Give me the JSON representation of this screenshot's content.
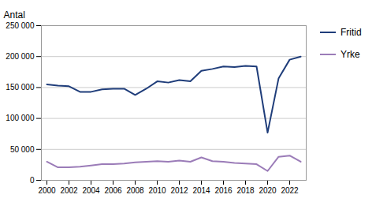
{
  "chart_data": {
    "type": "line",
    "x": [
      2000,
      2001,
      2002,
      2003,
      2004,
      2005,
      2006,
      2007,
      2008,
      2009,
      2010,
      2011,
      2012,
      2013,
      2014,
      2015,
      2016,
      2017,
      2018,
      2019,
      2020,
      2021,
      2022,
      2023
    ],
    "series": [
      {
        "name": "Fritid",
        "color": "#1f3d7a",
        "values": [
          155000,
          153000,
          152000,
          143000,
          143000,
          147000,
          148000,
          148000,
          138000,
          148000,
          160000,
          158000,
          162000,
          160000,
          177000,
          180000,
          184000,
          183000,
          185000,
          184000,
          77000,
          165000,
          195000,
          200000
        ]
      },
      {
        "name": "Yrke",
        "color": "#9b7cb8",
        "values": [
          30000,
          21000,
          21000,
          22000,
          24000,
          26000,
          26000,
          27000,
          29000,
          30000,
          31000,
          30000,
          32000,
          30000,
          37000,
          31000,
          30000,
          28000,
          27000,
          26000,
          15000,
          38000,
          40000,
          30000
        ]
      }
    ],
    "ylabel": "Antal",
    "xlim": [
      1999.5,
      2023.5
    ],
    "xticks": [
      2000,
      2002,
      2004,
      2006,
      2008,
      2010,
      2012,
      2014,
      2016,
      2018,
      2020,
      2022
    ],
    "ylim": [
      0,
      250000
    ],
    "yticks": [
      0,
      {
        "value": 50000,
        "label": "50 000"
      },
      {
        "value": 100000,
        "label": "100 000"
      },
      {
        "value": 150000,
        "label": "150 000"
      },
      {
        "value": 200000,
        "label": "200 000"
      },
      {
        "value": 250000,
        "label": "250 000"
      }
    ],
    "grid": true,
    "legend": "right"
  }
}
